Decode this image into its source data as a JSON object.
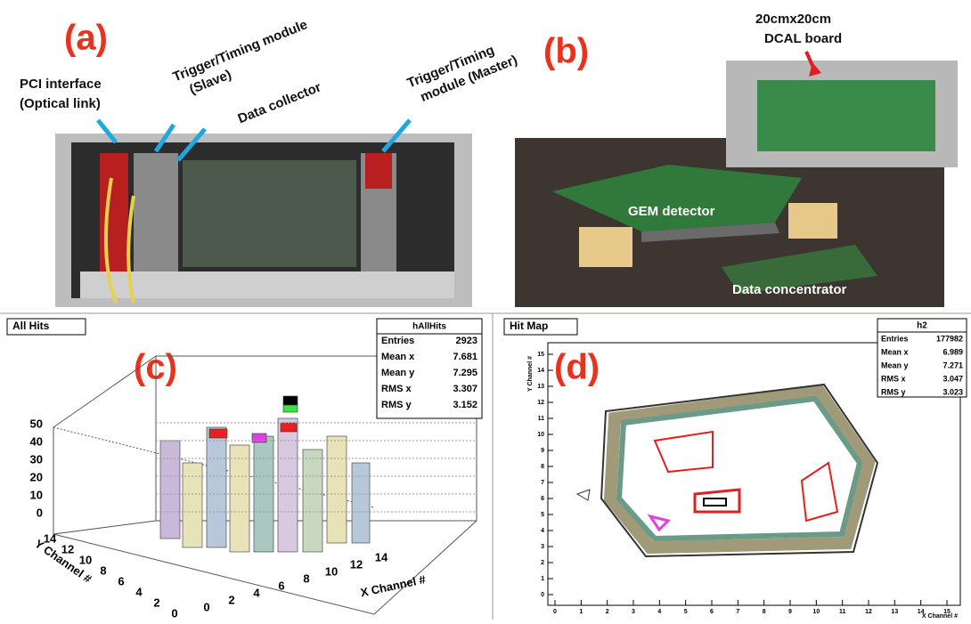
{
  "panel_a": {
    "label": "(a)",
    "annotations": [
      [
        "PCI interface",
        "(Optical link)"
      ],
      [
        "Trigger/Timing module",
        "(Slave)"
      ],
      [
        "Data collector"
      ],
      [
        "Trigger/Timing",
        "module (Master)"
      ]
    ]
  },
  "panel_b": {
    "label": "(b)",
    "annotations": [
      [
        "20cmx20cm",
        "DCAL board"
      ],
      [
        "GEM detector"
      ],
      [
        "Data concentrator"
      ]
    ]
  },
  "panel_c": {
    "label": "(c)",
    "title": "All Hits",
    "stats_name": "hAllHits",
    "stats": [
      {
        "name": "Entries",
        "value": "2923"
      },
      {
        "name": "Mean x",
        "value": "7.681"
      },
      {
        "name": "Mean y",
        "value": "7.295"
      },
      {
        "name": "RMS x",
        "value": "3.307"
      },
      {
        "name": "RMS y",
        "value": "3.152"
      }
    ],
    "z_ticks": [
      0,
      10,
      20,
      30,
      40,
      50
    ],
    "x_ticks": [
      0,
      2,
      4,
      6,
      8,
      10,
      12,
      14
    ],
    "y_ticks": [
      0,
      2,
      4,
      6,
      8,
      10,
      12,
      14
    ],
    "x_title": "X Channel #",
    "y_title": "Y Channel #"
  },
  "panel_d": {
    "label": "(d)",
    "title": "Hit Map",
    "stats_name": "h2",
    "stats": [
      {
        "name": "Entries",
        "value": "177982"
      },
      {
        "name": "Mean x",
        "value": "6.989"
      },
      {
        "name": "Mean y",
        "value": "7.271"
      },
      {
        "name": "RMS x",
        "value": "3.047"
      },
      {
        "name": "RMS y",
        "value": "3.023"
      }
    ],
    "x_ticks": [
      0,
      1,
      2,
      3,
      4,
      5,
      6,
      7,
      8,
      9,
      10,
      11,
      12,
      13,
      14,
      15
    ],
    "y_ticks": [
      0,
      1,
      2,
      3,
      4,
      5,
      6,
      7,
      8,
      9,
      10,
      11,
      12,
      13,
      14,
      15
    ],
    "x_title": "X Channel #",
    "y_title": "Y Channel #"
  }
}
